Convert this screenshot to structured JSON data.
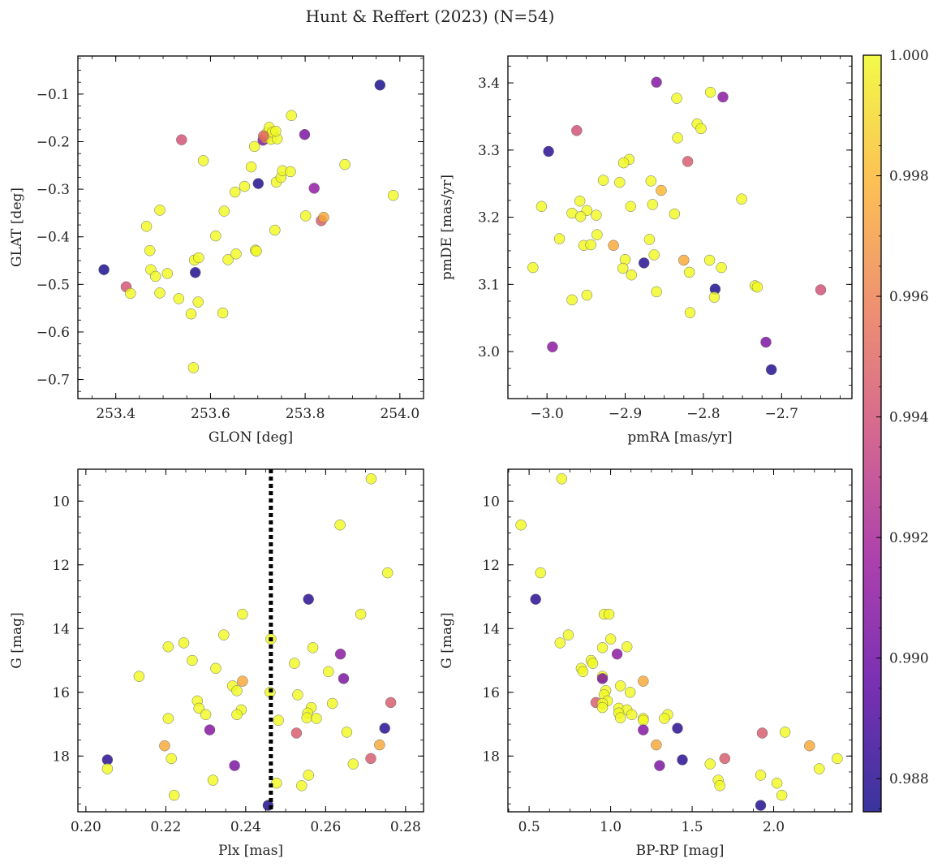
{
  "title": "Hunt & Reffert (2023) (N=54)",
  "colormap": {
    "name": "plasma",
    "min": 0.98745,
    "max": 1.0,
    "ticks": [
      0.988,
      0.99,
      0.992,
      0.994,
      0.996,
      0.998,
      1.0
    ],
    "tick_labels": [
      "0.988",
      "0.990",
      "0.992",
      "0.994",
      "0.996",
      "0.998",
      "1.000"
    ],
    "stops": [
      "#0d0887",
      "#5b02a3",
      "#9a179b",
      "#cb4678",
      "#eb7852",
      "#fbb32f",
      "#f0f921"
    ]
  },
  "chart_data": [
    {
      "type": "scatter",
      "id": "glon-glat",
      "xlabel": "GLON [deg]",
      "ylabel": "GLAT [deg]",
      "xlim": [
        253.32,
        254.05
      ],
      "ylim": [
        -0.74,
        -0.02
      ],
      "invert_y": false,
      "xticks": [
        253.4,
        253.6,
        253.8,
        254.0
      ],
      "xtick_labels": [
        "253.4",
        "253.6",
        "253.8",
        "254.0"
      ],
      "yticks": [
        -0.7,
        -0.6,
        -0.5,
        -0.4,
        -0.3,
        -0.2,
        -0.1
      ],
      "ytick_labels": [
        "−0.7",
        "−0.6",
        "−0.5",
        "−0.4",
        "−0.3",
        "−0.2",
        "−0.1"
      ],
      "points": [
        [
          253.958,
          -0.081,
          0.9876
        ],
        [
          253.375,
          -0.469,
          0.9876
        ],
        [
          253.422,
          -0.505,
          0.9942
        ],
        [
          253.431,
          -0.519,
          1.0
        ],
        [
          253.465,
          -0.378,
          1.0
        ],
        [
          253.472,
          -0.429,
          1.0
        ],
        [
          253.474,
          -0.469,
          1.0
        ],
        [
          253.484,
          -0.483,
          1.0
        ],
        [
          253.493,
          -0.344,
          1.0
        ],
        [
          253.493,
          -0.518,
          1.0
        ],
        [
          253.509,
          -0.477,
          1.0
        ],
        [
          253.533,
          -0.53,
          1.0
        ],
        [
          253.539,
          -0.196,
          0.994
        ],
        [
          253.559,
          -0.562,
          1.0
        ],
        [
          253.564,
          -0.675,
          1.0
        ],
        [
          253.566,
          -0.449,
          1.0
        ],
        [
          253.568,
          -0.475,
          0.9878
        ],
        [
          253.574,
          -0.537,
          1.0
        ],
        [
          253.575,
          -0.444,
          1.0
        ],
        [
          253.585,
          -0.24,
          1.0
        ],
        [
          253.611,
          -0.398,
          1.0
        ],
        [
          253.626,
          -0.56,
          1.0
        ],
        [
          253.629,
          -0.346,
          1.0
        ],
        [
          253.637,
          -0.448,
          1.0
        ],
        [
          253.652,
          -0.306,
          1.0
        ],
        [
          253.654,
          -0.436,
          1.0
        ],
        [
          253.672,
          -0.294,
          1.0
        ],
        [
          253.686,
          -0.253,
          1.0
        ],
        [
          253.693,
          -0.21,
          1.0
        ],
        [
          253.695,
          -0.428,
          1.0
        ],
        [
          253.697,
          -0.43,
          1.0
        ],
        [
          253.701,
          -0.288,
          0.9878
        ],
        [
          253.711,
          -0.197,
          0.9905
        ],
        [
          253.716,
          -0.192,
          0.9968
        ],
        [
          253.719,
          -0.182,
          1.0
        ],
        [
          253.724,
          -0.17,
          1.0
        ],
        [
          253.728,
          -0.195,
          1.0
        ],
        [
          253.731,
          -0.18,
          1.0
        ],
        [
          253.736,
          -0.386,
          1.0
        ],
        [
          253.739,
          -0.285,
          1.0
        ],
        [
          253.741,
          -0.194,
          1.0
        ],
        [
          253.738,
          -0.178,
          1.0
        ],
        [
          253.749,
          -0.275,
          1.0
        ],
        [
          253.752,
          -0.261,
          1.0
        ],
        [
          253.769,
          -0.263,
          1.0
        ],
        [
          253.771,
          -0.145,
          1.0
        ],
        [
          253.799,
          -0.185,
          0.9905
        ],
        [
          253.801,
          -0.356,
          1.0
        ],
        [
          253.819,
          -0.298,
          0.9912
        ],
        [
          253.834,
          -0.366,
          0.9945
        ],
        [
          253.839,
          -0.359,
          0.9975
        ],
        [
          253.884,
          -0.248,
          1.0
        ],
        [
          253.986,
          -0.313,
          1.0
        ],
        [
          253.712,
          -0.188,
          0.995
        ]
      ]
    },
    {
      "type": "scatter",
      "id": "pmra-pmde",
      "xlabel": "pmRA [mas/yr]",
      "ylabel": "pmDE [mas/yr]",
      "xlim": [
        -3.05,
        -2.61
      ],
      "ylim": [
        2.93,
        3.44
      ],
      "invert_y": false,
      "xticks": [
        -3.0,
        -2.9,
        -2.8,
        -2.7
      ],
      "xtick_labels": [
        "−3.0",
        "−2.9",
        "−2.8",
        "−2.7"
      ],
      "yticks": [
        3.0,
        3.1,
        3.2,
        3.3,
        3.4
      ],
      "ytick_labels": [
        "3.0",
        "3.1",
        "3.2",
        "3.3",
        "3.4"
      ],
      "points": [
        [
          -2.86,
          3.401,
          0.9908
        ],
        [
          -2.775,
          3.379,
          0.991
        ],
        [
          -2.834,
          3.377,
          1.0
        ],
        [
          -2.791,
          3.386,
          1.0
        ],
        [
          -2.962,
          3.329,
          0.994
        ],
        [
          -2.998,
          3.298,
          0.988
        ],
        [
          -2.808,
          3.339,
          1.0
        ],
        [
          -2.803,
          3.332,
          1.0
        ],
        [
          -2.833,
          3.318,
          1.0
        ],
        [
          -2.895,
          3.286,
          1.0
        ],
        [
          -2.902,
          3.281,
          1.0
        ],
        [
          -2.854,
          3.24,
          0.998
        ],
        [
          -2.82,
          3.283,
          0.9945
        ],
        [
          -2.867,
          3.254,
          1.0
        ],
        [
          -2.928,
          3.255,
          1.0
        ],
        [
          -2.907,
          3.252,
          1.0
        ],
        [
          -2.958,
          3.224,
          1.0
        ],
        [
          -2.865,
          3.219,
          1.0
        ],
        [
          -2.893,
          3.216,
          1.0
        ],
        [
          -3.007,
          3.216,
          1.0
        ],
        [
          -2.949,
          3.21,
          1.0
        ],
        [
          -2.968,
          3.206,
          1.0
        ],
        [
          -2.957,
          3.201,
          1.0
        ],
        [
          -2.937,
          3.203,
          1.0
        ],
        [
          -2.837,
          3.205,
          1.0
        ],
        [
          -2.751,
          3.227,
          1.0
        ],
        [
          -2.936,
          3.174,
          1.0
        ],
        [
          -2.869,
          3.167,
          1.0
        ],
        [
          -2.984,
          3.168,
          1.0
        ],
        [
          -2.953,
          3.158,
          1.0
        ],
        [
          -2.944,
          3.159,
          1.0
        ],
        [
          -2.915,
          3.158,
          0.9975
        ],
        [
          -2.792,
          3.136,
          1.0
        ],
        [
          -2.825,
          3.136,
          0.9975
        ],
        [
          -2.9,
          3.137,
          1.0
        ],
        [
          -2.863,
          3.144,
          1.0
        ],
        [
          -2.876,
          3.132,
          0.988
        ],
        [
          -2.777,
          3.125,
          1.0
        ],
        [
          -3.018,
          3.125,
          1.0
        ],
        [
          -2.903,
          3.124,
          1.0
        ],
        [
          -2.818,
          3.118,
          1.0
        ],
        [
          -2.892,
          3.114,
          1.0
        ],
        [
          -2.734,
          3.098,
          1.0
        ],
        [
          -2.731,
          3.096,
          1.0
        ],
        [
          -2.785,
          3.093,
          0.9877
        ],
        [
          -2.65,
          3.092,
          0.994
        ],
        [
          -2.86,
          3.089,
          1.0
        ],
        [
          -2.949,
          3.084,
          1.0
        ],
        [
          -2.786,
          3.081,
          1.0
        ],
        [
          -2.968,
          3.077,
          1.0
        ],
        [
          -2.817,
          3.058,
          1.0
        ],
        [
          -2.993,
          3.007,
          0.991
        ],
        [
          -2.72,
          3.014,
          0.9905
        ],
        [
          -2.713,
          2.973,
          0.9878
        ]
      ]
    },
    {
      "type": "scatter",
      "id": "plx-g",
      "xlabel": "Plx [mas]",
      "ylabel": "G [mag]",
      "xlim": [
        0.198,
        0.2845
      ],
      "ylim": [
        9.0,
        19.75
      ],
      "invert_y": true,
      "vline": {
        "x": 0.2463,
        "style": "dotted"
      },
      "xticks": [
        0.2,
        0.22,
        0.24,
        0.26,
        0.28
      ],
      "xtick_labels": [
        "0.20",
        "0.22",
        "0.24",
        "0.26",
        "0.28"
      ],
      "yticks": [
        10,
        12,
        14,
        16,
        18
      ],
      "ytick_labels": [
        "10",
        "12",
        "14",
        "16",
        "18"
      ],
      "points": [
        [
          0.2714,
          9.3,
          1.0
        ],
        [
          0.2636,
          10.75,
          1.0
        ],
        [
          0.2755,
          12.25,
          1.0
        ],
        [
          0.2557,
          13.08,
          0.988
        ],
        [
          0.2688,
          13.55,
          1.0
        ],
        [
          0.2392,
          13.55,
          1.0
        ],
        [
          0.2345,
          14.2,
          1.0
        ],
        [
          0.2463,
          14.33,
          1.0
        ],
        [
          0.2245,
          14.45,
          1.0
        ],
        [
          0.2206,
          14.57,
          1.0
        ],
        [
          0.2568,
          14.6,
          1.0
        ],
        [
          0.2637,
          14.8,
          0.991
        ],
        [
          0.2266,
          15.0,
          1.0
        ],
        [
          0.2522,
          15.09,
          1.0
        ],
        [
          0.2325,
          15.25,
          1.0
        ],
        [
          0.2607,
          15.35,
          1.0
        ],
        [
          0.2133,
          15.5,
          1.0
        ],
        [
          0.2645,
          15.57,
          0.9905
        ],
        [
          0.2392,
          15.65,
          0.9975
        ],
        [
          0.2367,
          15.8,
          1.0
        ],
        [
          0.2378,
          15.95,
          1.0
        ],
        [
          0.2461,
          16.0,
          1.0
        ],
        [
          0.253,
          16.08,
          1.0
        ],
        [
          0.2279,
          16.27,
          1.0
        ],
        [
          0.2763,
          16.32,
          0.9945
        ],
        [
          0.2617,
          16.35,
          1.0
        ],
        [
          0.2564,
          16.48,
          1.0
        ],
        [
          0.2283,
          16.5,
          1.0
        ],
        [
          0.2389,
          16.55,
          1.0
        ],
        [
          0.23,
          16.7,
          1.0
        ],
        [
          0.2555,
          16.65,
          1.0
        ],
        [
          0.2378,
          16.7,
          1.0
        ],
        [
          0.2553,
          16.8,
          1.0
        ],
        [
          0.2577,
          16.82,
          1.0
        ],
        [
          0.2206,
          16.82,
          1.0
        ],
        [
          0.2482,
          16.88,
          1.0
        ],
        [
          0.2748,
          17.13,
          0.988
        ],
        [
          0.231,
          17.18,
          0.9908
        ],
        [
          0.2653,
          17.25,
          1.0
        ],
        [
          0.2527,
          17.28,
          0.9945
        ],
        [
          0.2735,
          17.65,
          0.9975
        ],
        [
          0.2197,
          17.68,
          0.9975
        ],
        [
          0.2713,
          18.08,
          0.9945
        ],
        [
          0.2214,
          18.08,
          1.0
        ],
        [
          0.2054,
          18.12,
          0.988
        ],
        [
          0.2669,
          18.25,
          1.0
        ],
        [
          0.2372,
          18.3,
          0.9905
        ],
        [
          0.2054,
          18.4,
          1.0
        ],
        [
          0.2557,
          18.6,
          1.0
        ],
        [
          0.2318,
          18.76,
          1.0
        ],
        [
          0.2477,
          18.85,
          1.0
        ],
        [
          0.254,
          18.93,
          1.0
        ],
        [
          0.2221,
          19.23,
          1.0
        ],
        [
          0.2456,
          19.55,
          0.9878
        ]
      ]
    },
    {
      "type": "scatter",
      "id": "bprp-g",
      "xlabel": "BP-RP [mag]",
      "ylabel": "G [mag]",
      "xlim": [
        0.37,
        2.48
      ],
      "ylim": [
        9.0,
        19.75
      ],
      "invert_y": true,
      "xticks": [
        0.5,
        1.0,
        1.5,
        2.0
      ],
      "xtick_labels": [
        "0.5",
        "1.0",
        "1.5",
        "2.0"
      ],
      "yticks": [
        10,
        12,
        14,
        16,
        18
      ],
      "ytick_labels": [
        "10",
        "12",
        "14",
        "16",
        "18"
      ],
      "points": [
        [
          0.7,
          9.3,
          1.0
        ],
        [
          0.45,
          10.75,
          1.0
        ],
        [
          0.57,
          12.25,
          1.0
        ],
        [
          0.54,
          13.08,
          0.988
        ],
        [
          0.96,
          13.55,
          1.0
        ],
        [
          0.99,
          13.55,
          1.0
        ],
        [
          0.74,
          14.2,
          1.0
        ],
        [
          1.0,
          14.33,
          1.0
        ],
        [
          0.69,
          14.45,
          1.0
        ],
        [
          1.1,
          14.57,
          1.0
        ],
        [
          0.95,
          14.6,
          1.0
        ],
        [
          1.04,
          14.8,
          0.991
        ],
        [
          0.88,
          15.0,
          1.0
        ],
        [
          0.89,
          15.09,
          1.0
        ],
        [
          0.82,
          15.25,
          1.0
        ],
        [
          0.83,
          15.35,
          1.0
        ],
        [
          0.95,
          15.5,
          1.0
        ],
        [
          0.95,
          15.57,
          0.9905
        ],
        [
          1.2,
          15.65,
          0.9975
        ],
        [
          1.06,
          15.8,
          1.0
        ],
        [
          0.97,
          15.95,
          1.0
        ],
        [
          1.12,
          16.0,
          1.0
        ],
        [
          0.96,
          16.08,
          1.0
        ],
        [
          0.98,
          16.27,
          1.0
        ],
        [
          0.91,
          16.32,
          0.9945
        ],
        [
          0.95,
          16.35,
          1.0
        ],
        [
          0.95,
          16.48,
          1.0
        ],
        [
          1.05,
          16.5,
          1.0
        ],
        [
          1.1,
          16.55,
          1.0
        ],
        [
          1.13,
          16.7,
          1.0
        ],
        [
          1.05,
          16.65,
          1.0
        ],
        [
          1.35,
          16.7,
          1.0
        ],
        [
          1.06,
          16.8,
          1.0
        ],
        [
          1.33,
          16.82,
          1.0
        ],
        [
          1.2,
          16.82,
          1.0
        ],
        [
          1.2,
          16.88,
          1.0
        ],
        [
          1.41,
          17.13,
          0.988
        ],
        [
          1.2,
          17.18,
          0.9908
        ],
        [
          2.07,
          17.25,
          1.0
        ],
        [
          1.93,
          17.28,
          0.9945
        ],
        [
          1.28,
          17.65,
          0.9975
        ],
        [
          2.22,
          17.68,
          0.9975
        ],
        [
          1.7,
          18.08,
          0.9945
        ],
        [
          2.39,
          18.08,
          1.0
        ],
        [
          1.44,
          18.12,
          0.988
        ],
        [
          1.61,
          18.25,
          1.0
        ],
        [
          1.3,
          18.3,
          0.9905
        ],
        [
          2.28,
          18.4,
          1.0
        ],
        [
          1.92,
          18.6,
          1.0
        ],
        [
          1.66,
          18.76,
          1.0
        ],
        [
          2.02,
          18.85,
          1.0
        ],
        [
          1.67,
          18.93,
          1.0
        ],
        [
          2.05,
          19.23,
          1.0
        ],
        [
          1.92,
          19.55,
          0.9878
        ]
      ]
    }
  ]
}
